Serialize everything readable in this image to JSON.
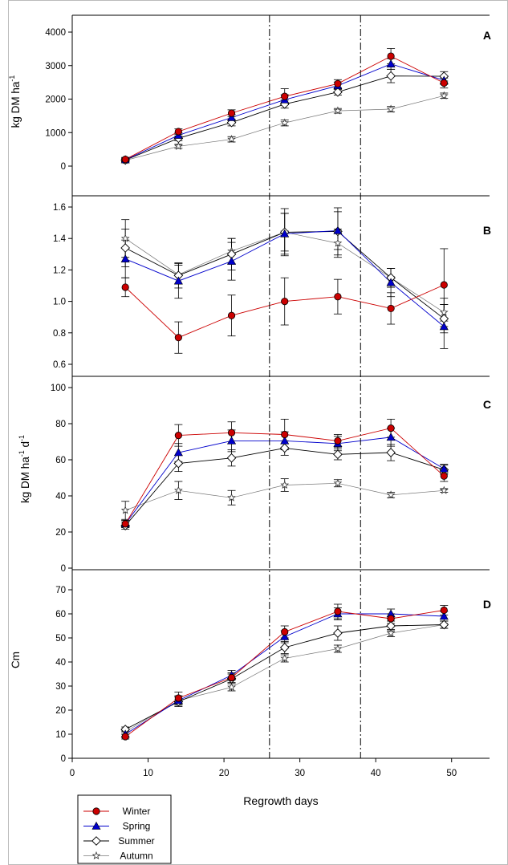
{
  "colors": {
    "winter": "#cc0000",
    "spring": "#0000cc",
    "summer": "#000000",
    "autumn": "#777777"
  },
  "figure": {
    "xlabel": "Regrowth days",
    "x_ticks": [
      "0",
      "10",
      "20",
      "30",
      "40",
      "50"
    ]
  },
  "legend": {
    "placement": "bottom-left",
    "entries": [
      {
        "label": "Winter",
        "marker": "filled-circle",
        "color": "#cc0000"
      },
      {
        "label": "Spring",
        "marker": "filled-triangle",
        "color": "#0000cc"
      },
      {
        "label": "Summer",
        "marker": "open-diamond",
        "color": "#000000"
      },
      {
        "label": "Autumn",
        "marker": "open-star",
        "color": "#777777"
      }
    ]
  },
  "chart_data": [
    {
      "type": "line",
      "panel_label": "A",
      "ylabel": "kg DM ha",
      "ylabel_sup": "-1",
      "ylim": [
        -500,
        4500
      ],
      "y_ticks": [
        "0",
        "1000",
        "2000",
        "3000",
        "4000"
      ],
      "x": [
        7,
        14,
        21,
        28,
        35,
        42,
        49
      ],
      "series": [
        {
          "name": "Winter",
          "values": [
            200,
            1030,
            1580,
            2080,
            2460,
            3280,
            2480
          ],
          "errors": [
            60,
            80,
            100,
            230,
            120,
            230,
            150
          ]
        },
        {
          "name": "Spring",
          "values": [
            190,
            920,
            1450,
            1980,
            2400,
            3050,
            2560
          ],
          "errors": [
            50,
            80,
            90,
            150,
            110,
            160,
            120
          ]
        },
        {
          "name": "Summer",
          "values": [
            180,
            830,
            1300,
            1850,
            2210,
            2690,
            2680
          ],
          "errors": [
            50,
            70,
            100,
            120,
            90,
            200,
            140
          ]
        },
        {
          "name": "Autumn",
          "values": [
            170,
            590,
            800,
            1290,
            1650,
            1700,
            2100
          ],
          "errors": [
            40,
            60,
            80,
            90,
            70,
            80,
            80
          ]
        }
      ]
    },
    {
      "type": "line",
      "panel_label": "B",
      "ylabel": "",
      "ylim": [
        0.5,
        1.65
      ],
      "y_ticks": [
        "0.6",
        "0.8",
        "1.0",
        "1.2",
        "1.4",
        "1.6"
      ],
      "x": [
        7,
        14,
        21,
        28,
        35,
        42,
        49
      ],
      "series": [
        {
          "name": "Winter",
          "values": [
            1.09,
            0.77,
            0.91,
            1.0,
            1.03,
            0.955,
            1.105
          ],
          "errors": [
            0.06,
            0.1,
            0.13,
            0.15,
            0.11,
            0.1,
            0.23
          ]
        },
        {
          "name": "Spring",
          "values": [
            1.27,
            1.13,
            1.255,
            1.43,
            1.45,
            1.12,
            0.84
          ],
          "errors": [
            0.12,
            0.11,
            0.12,
            0.13,
            0.12,
            0.09,
            0.14
          ]
        },
        {
          "name": "Summer",
          "values": [
            1.34,
            1.165,
            1.3,
            1.44,
            1.445,
            1.15,
            0.89
          ],
          "errors": [
            0.12,
            0.08,
            0.1,
            0.15,
            0.15,
            0.06,
            0.09
          ]
        },
        {
          "name": "Autumn",
          "values": [
            1.4,
            1.17,
            1.32,
            1.44,
            1.37,
            1.15,
            0.93
          ],
          "errors": [
            0.12,
            0.06,
            0.08,
            0.12,
            0.09,
            0.06,
            0.09
          ]
        }
      ]
    },
    {
      "type": "line",
      "panel_label": "C",
      "ylabel": "kg DM ha",
      "ylabel_sup": "-1",
      "ylabel_tail": " d",
      "ylabel_tail_sup": "-1",
      "ylim": [
        0,
        100
      ],
      "y_ticks": [
        "0",
        "20",
        "40",
        "60",
        "80",
        "100"
      ],
      "x": [
        7,
        14,
        21,
        28,
        35,
        42,
        49
      ],
      "series": [
        {
          "name": "Winter",
          "values": [
            24.5,
            73.5,
            75,
            74,
            70.5,
            77.5,
            51
          ],
          "errors": [
            2,
            6,
            6,
            8.5,
            3.5,
            5,
            3
          ]
        },
        {
          "name": "Spring",
          "values": [
            24.5,
            64,
            70.5,
            70.5,
            69,
            72.5,
            55
          ],
          "errors": [
            2,
            5,
            6,
            5,
            4,
            5,
            2.5
          ]
        },
        {
          "name": "Summer",
          "values": [
            23.5,
            58,
            61,
            66.5,
            63,
            64,
            54.5
          ],
          "errors": [
            2,
            4.5,
            4.5,
            4,
            3,
            4.5,
            2.5
          ]
        },
        {
          "name": "Autumn",
          "values": [
            32,
            43,
            39,
            46,
            47,
            40.5,
            43
          ],
          "errors": [
            5,
            5,
            4,
            3.5,
            2,
            1.5,
            1
          ]
        }
      ]
    },
    {
      "type": "line",
      "panel_label": "D",
      "ylabel": "Cm",
      "ylim": [
        0,
        75
      ],
      "y_ticks": [
        "0",
        "10",
        "20",
        "30",
        "40",
        "50",
        "60",
        "70"
      ],
      "x": [
        7,
        14,
        21,
        28,
        35,
        42,
        49
      ],
      "series": [
        {
          "name": "Winter",
          "values": [
            9,
            25,
            33.5,
            52.5,
            61,
            58,
            61.5
          ],
          "errors": [
            1,
            2.5,
            2,
            2.5,
            3,
            2,
            2
          ]
        },
        {
          "name": "Spring",
          "values": [
            10,
            24,
            34.5,
            50.5,
            60,
            60,
            59
          ],
          "errors": [
            1,
            2,
            2,
            2.5,
            2.5,
            2,
            2
          ]
        },
        {
          "name": "Summer",
          "values": [
            12,
            23.5,
            33,
            46,
            52,
            55,
            55.5
          ],
          "errors": [
            1,
            2,
            2,
            2.5,
            3,
            2,
            1.5
          ]
        },
        {
          "name": "Autumn",
          "values": [
            11,
            24,
            29.5,
            41.5,
            45.5,
            52,
            55.5
          ],
          "errors": [
            1,
            1.5,
            1.5,
            1.5,
            1.5,
            1.5,
            1.5
          ]
        }
      ]
    }
  ],
  "reference_lines": [
    {
      "x": 26,
      "style": "dash-dot"
    },
    {
      "x": 38,
      "style": "dash-dot"
    }
  ]
}
